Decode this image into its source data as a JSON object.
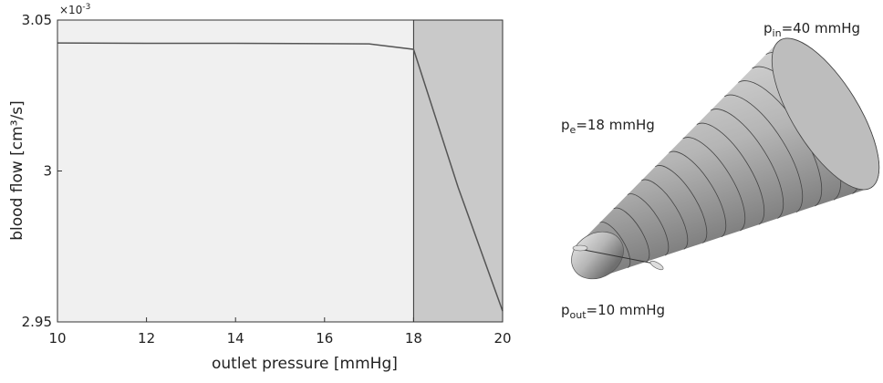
{
  "chart_data": {
    "type": "line",
    "x_label": "outlet pressure [mmHg]",
    "y_label": "blood flow [cm³/s]",
    "y_multiplier_base": "×10",
    "y_multiplier_exponent": "-3",
    "x": [
      10,
      12,
      14,
      16,
      17,
      18,
      19,
      20
    ],
    "series": [
      {
        "color": "#555555",
        "values": [
          3.0424,
          3.0423,
          3.0423,
          3.0422,
          3.0421,
          3.0403,
          2.9946,
          2.9536
        ]
      }
    ],
    "xlim": [
      10,
      20
    ],
    "ylim": [
      2.95,
      3.05
    ],
    "xticks": [
      10,
      12,
      14,
      16,
      18,
      20
    ],
    "yticks": [
      2.95,
      3,
      3.05
    ],
    "background_color": "#f0f0f0",
    "shaded_region": [
      18,
      20
    ],
    "shaded_color": "#c9c9c9"
  },
  "illustration": {
    "labels": [
      {
        "base": "p",
        "sub": "in",
        "text": "=40 mmHg"
      },
      {
        "base": "p",
        "sub": "e",
        "text": "=18 mmHg"
      },
      {
        "base": "p",
        "sub": "out",
        "text": "=10 mmHg"
      }
    ]
  }
}
